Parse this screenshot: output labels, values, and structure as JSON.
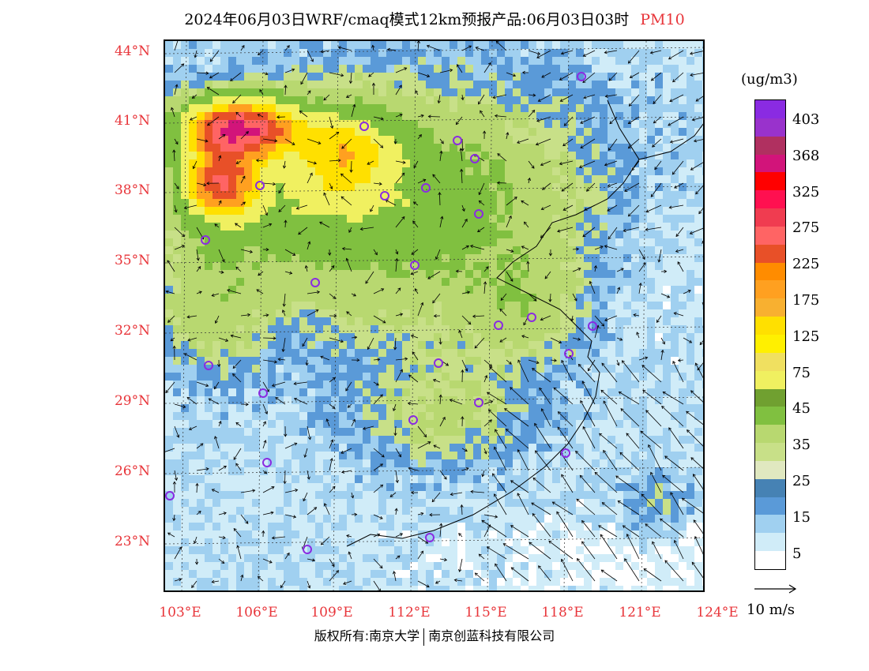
{
  "title": {
    "main": "2024年06月03日WRF/cmaq模式12km预报产品:06月03日03时",
    "pollutant": "PM10"
  },
  "map": {
    "lat_labels": [
      "44°N",
      "41°N",
      "38°N",
      "35°N",
      "32°N",
      "29°N",
      "26°N",
      "23°N"
    ],
    "lon_labels": [
      "103°E",
      "106°E",
      "109°E",
      "112°E",
      "115°E",
      "118°E",
      "121°E",
      "124°E"
    ],
    "lat_range": [
      21.0,
      44.5
    ],
    "lon_range": [
      103.0,
      124.0
    ]
  },
  "legend": {
    "unit": "(ug/m3)",
    "ticks": [
      "403",
      "368",
      "325",
      "275",
      "225",
      "175",
      "125",
      "75",
      "45",
      "35",
      "25",
      "15",
      "5"
    ],
    "colors": [
      "#8a2be2",
      "#9932cc",
      "#b03060",
      "#d2147a",
      "#ff0000",
      "#ff1050",
      "#f03c50",
      "#ff6464",
      "#e85028",
      "#ff8c00",
      "#ffa020",
      "#f8b030",
      "#ffe000",
      "#fff000",
      "#f0e060",
      "#f0f060",
      "#70a030",
      "#80c040",
      "#b8d870",
      "#c8e088",
      "#e0e8c0",
      "#4682b4",
      "#5a9ad8",
      "#a0d0f0",
      "#d0ecf8",
      "#ffffff"
    ]
  },
  "wind_reference": {
    "label": "10 m/s"
  },
  "copyright": {
    "left": "版权所有:南京大学",
    "right": "南京创蓝科技有限公司"
  },
  "colors": {
    "axis_label": "#e8353a",
    "city_marker": "#8a2be2"
  }
}
